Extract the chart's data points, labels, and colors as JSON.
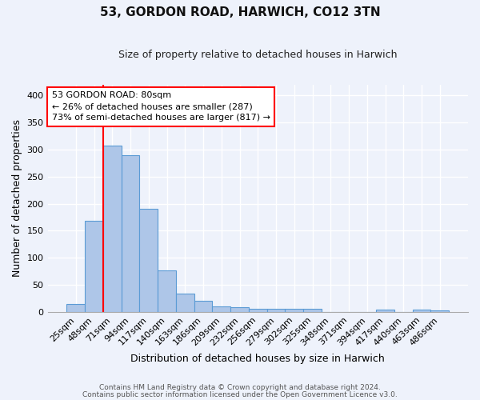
{
  "title": "53, GORDON ROAD, HARWICH, CO12 3TN",
  "subtitle": "Size of property relative to detached houses in Harwich",
  "xlabel": "Distribution of detached houses by size in Harwich",
  "ylabel": "Number of detached properties",
  "bin_labels": [
    "25sqm",
    "48sqm",
    "71sqm",
    "94sqm",
    "117sqm",
    "140sqm",
    "163sqm",
    "186sqm",
    "209sqm",
    "232sqm",
    "256sqm",
    "279sqm",
    "302sqm",
    "325sqm",
    "348sqm",
    "371sqm",
    "394sqm",
    "417sqm",
    "440sqm",
    "463sqm",
    "486sqm"
  ],
  "bar_heights": [
    15,
    168,
    307,
    290,
    190,
    77,
    34,
    20,
    10,
    9,
    5,
    5,
    6,
    5,
    0,
    0,
    0,
    4,
    0,
    4,
    3
  ],
  "bar_color": "#aec6e8",
  "bar_edge_color": "#5b9bd5",
  "background_color": "#eef2fb",
  "grid_color": "#ffffff",
  "red_line_x": 1.5,
  "annotation_text": "53 GORDON ROAD: 80sqm\n← 26% of detached houses are smaller (287)\n73% of semi-detached houses are larger (817) →",
  "footnote_line1": "Contains HM Land Registry data © Crown copyright and database right 2024.",
  "footnote_line2": "Contains public sector information licensed under the Open Government Licence v3.0.",
  "ylim": [
    0,
    420
  ],
  "yticks": [
    0,
    50,
    100,
    150,
    200,
    250,
    300,
    350,
    400
  ]
}
